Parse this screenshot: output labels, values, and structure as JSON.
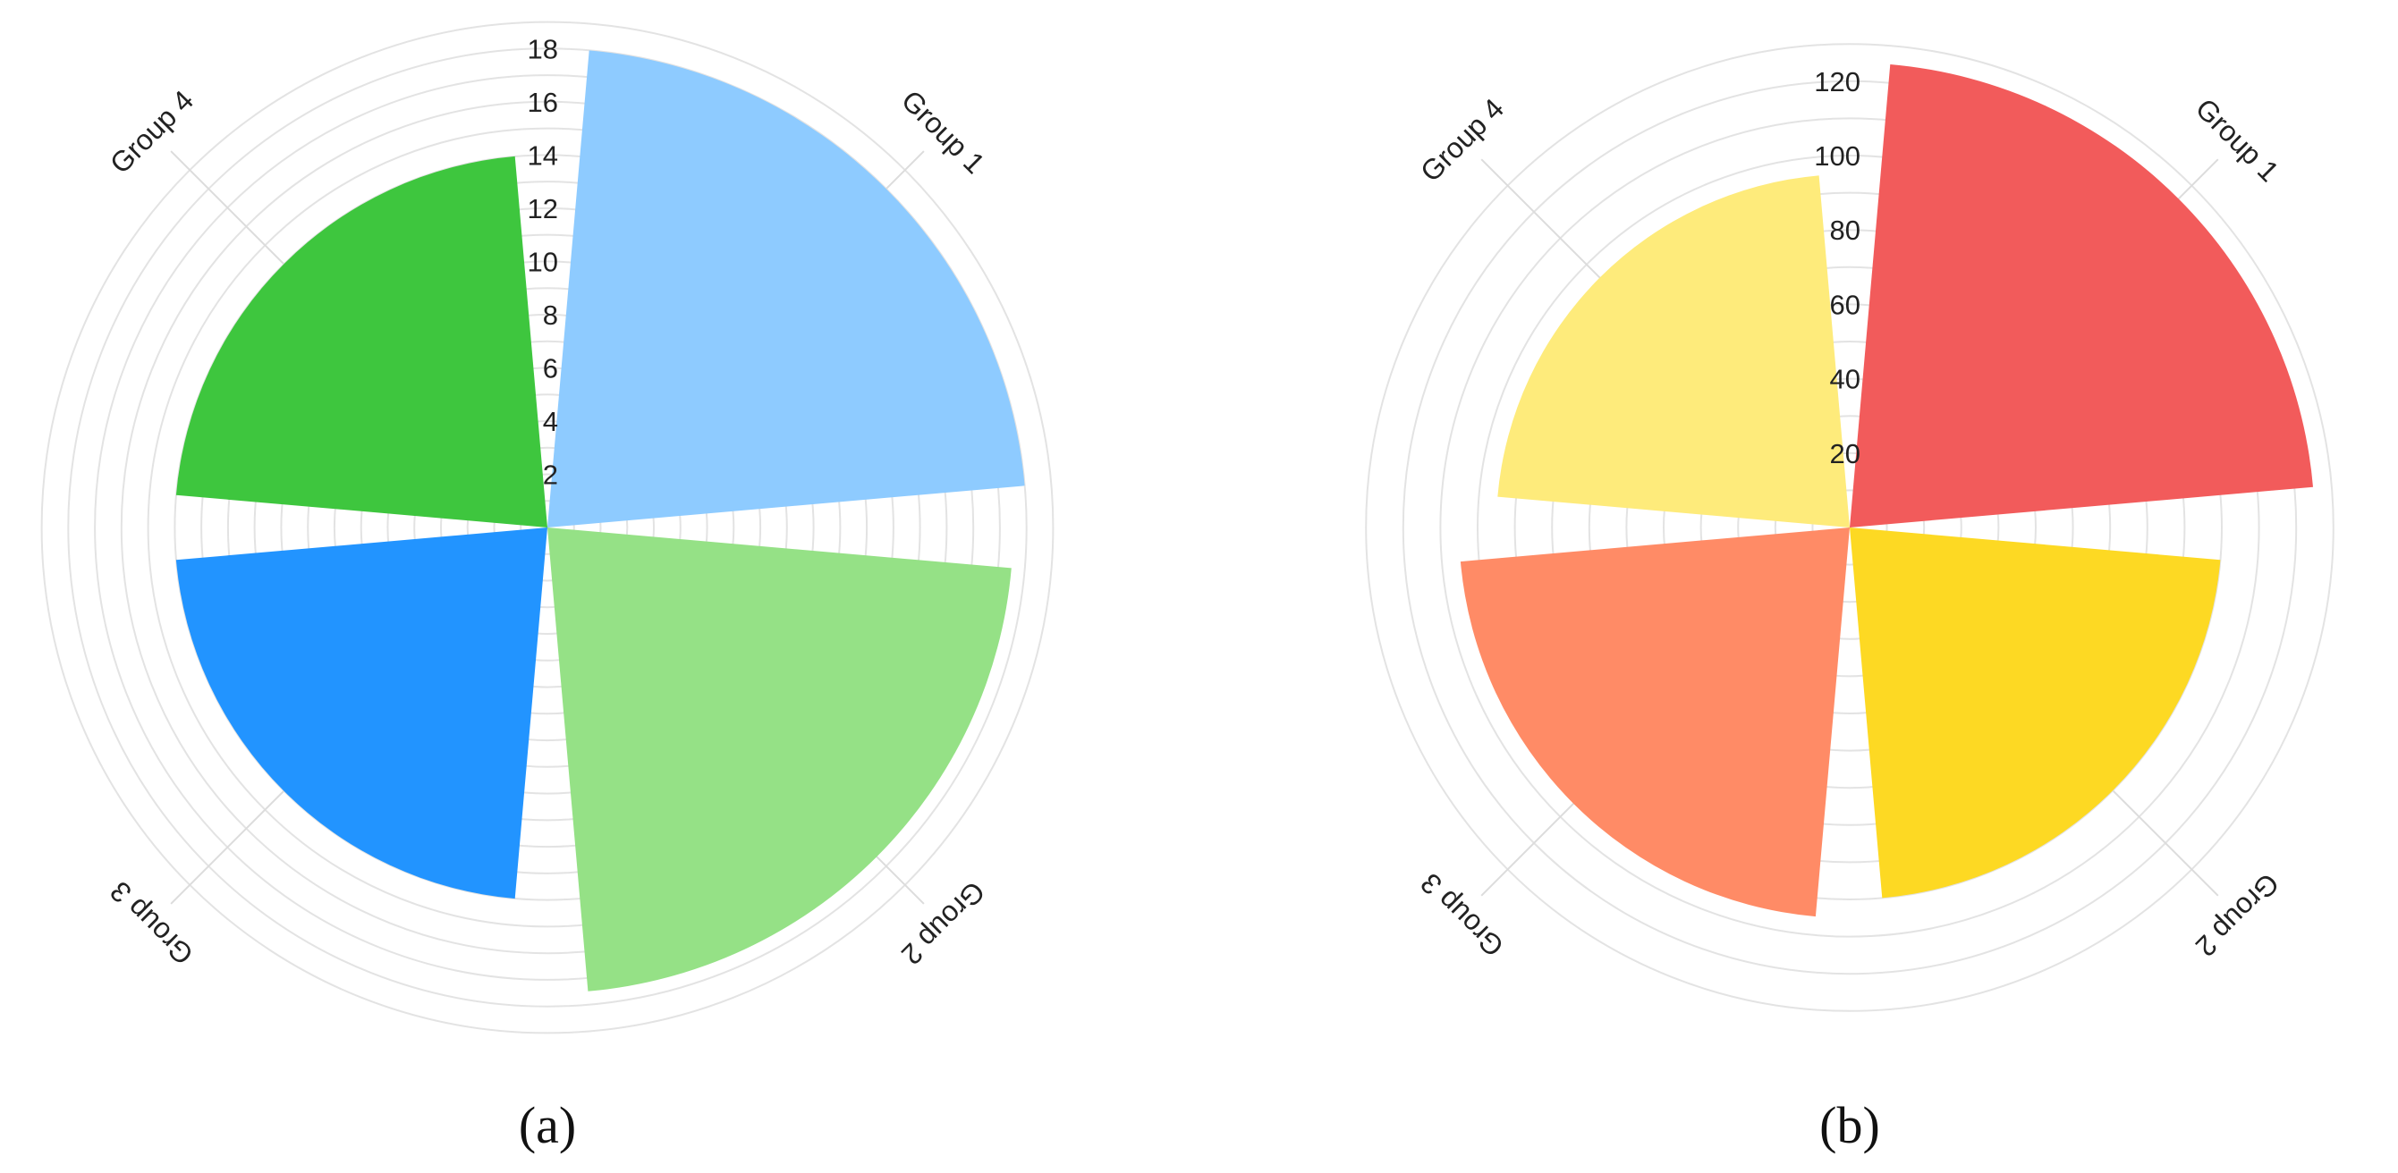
{
  "chart_data": [
    {
      "type": "polar-bar",
      "caption": "(a)",
      "categories": [
        "Group 1",
        "Group 2",
        "Group 3",
        "Group 4"
      ],
      "values": [
        18,
        17.5,
        14,
        14
      ],
      "colors": [
        "#8ecbff",
        "#95e186",
        "#2294ff",
        "#3ec63e"
      ],
      "rlim": [
        0,
        18
      ],
      "ticks": [
        "2",
        "4",
        "6",
        "8",
        "10",
        "12",
        "14",
        "16",
        "18"
      ],
      "grid": true
    },
    {
      "type": "polar-bar",
      "caption": "(b)",
      "categories": [
        "Group 1",
        "Group 2",
        "Group 3",
        "Group 4"
      ],
      "values": [
        125,
        100,
        105,
        95
      ],
      "colors": [
        "#f25b5b",
        "#fdd923",
        "#ff8b66",
        "#feeb7b"
      ],
      "rlim": [
        0,
        120
      ],
      "ticks": [
        "20",
        "40",
        "60",
        "80",
        "100",
        "120"
      ],
      "grid": true
    }
  ]
}
